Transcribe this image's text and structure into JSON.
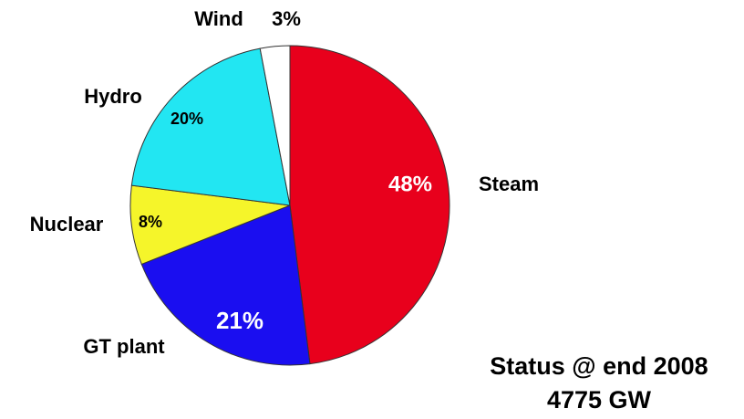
{
  "chart_data": {
    "type": "pie",
    "categories": [
      "Steam",
      "GT plant",
      "Nuclear",
      "Hydro",
      "Wind"
    ],
    "values": [
      48,
      21,
      8,
      20,
      3
    ],
    "value_labels": [
      "48%",
      "21%",
      "8%",
      "20%",
      "3%"
    ],
    "colors": [
      "#e8001c",
      "#1a0ef0",
      "#f5f52a",
      "#22e6f2",
      "#ffffff"
    ],
    "annotations": [
      "Status @ end 2008",
      "4775 GW"
    ]
  }
}
